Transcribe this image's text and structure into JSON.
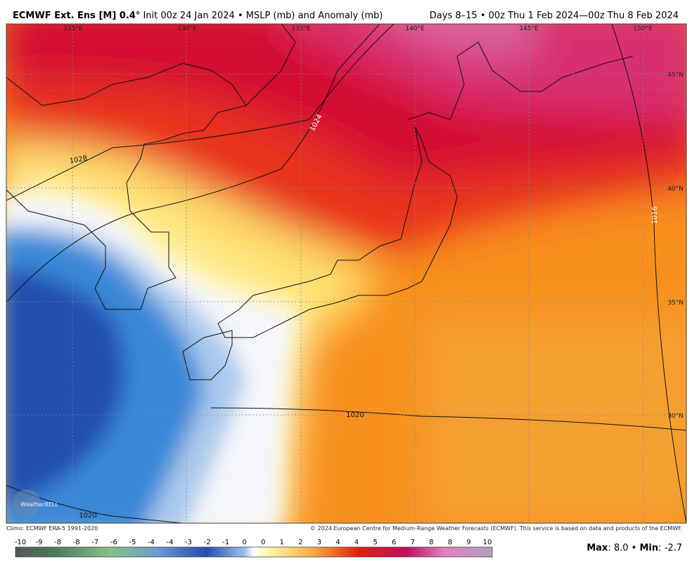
{
  "header": {
    "title_bold": "ECMWF Ext. Ens [M] 0.4°",
    "title_rest": "Init 00z 24 Jan 2024 • MSLP (mb) and Anomaly (mb)",
    "valid": "Days 8–15 • 00z Thu 1 Feb 2024—00z Thu 8 Feb 2024"
  },
  "map": {
    "lon_labels": [
      "125°E",
      "130°E",
      "135°E",
      "140°E",
      "145°E",
      "150°E"
    ],
    "lat_labels": [
      "45°N",
      "40°N",
      "35°N",
      "30°N"
    ],
    "contour_labels": [
      "1028",
      "1024",
      "1016",
      "1020",
      "1020"
    ],
    "logo": "WeatherBELL"
  },
  "footer": {
    "climo": "Climo: ECMWF ERA-5 1991-2020",
    "copyright": "© 2024 European Centre for Medium-Range Weather Forecasts (ECMWF). This service is based on data and products of the ECMWF.",
    "colorbar_labels": [
      "-10",
      "-9",
      "-8",
      "-8",
      "-7",
      "-6",
      "-5",
      "-4",
      "-4",
      "-3",
      "-2",
      "-1",
      "0",
      "0",
      "1",
      "2",
      "3",
      "4",
      "4",
      "5",
      "6",
      "7",
      "8",
      "8",
      "9",
      "10"
    ],
    "max_label": "Max",
    "max_value": ": 8.0 • ",
    "min_label": "Min",
    "min_value": ": -2.7"
  }
}
